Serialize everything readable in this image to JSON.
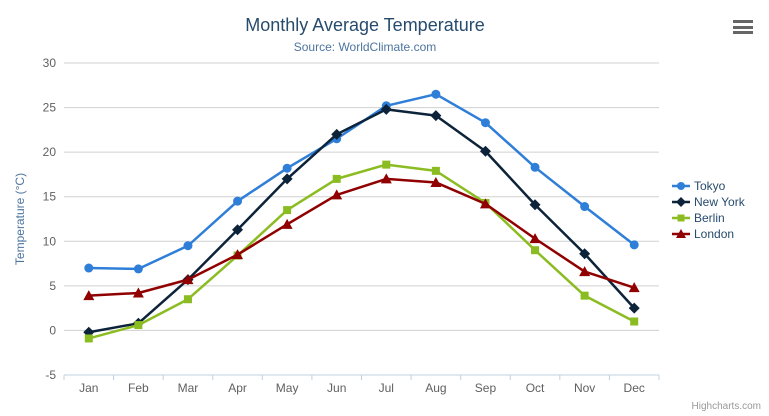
{
  "header": {
    "title": "Monthly Average Temperature",
    "subtitle": "Source: WorldClimate.com"
  },
  "credits": "Highcharts.com",
  "menu": {
    "icon": "hamburger-menu-icon"
  },
  "chart_data": {
    "type": "line",
    "title": "Monthly Average Temperature",
    "subtitle": "Source: WorldClimate.com",
    "categories": [
      "Jan",
      "Feb",
      "Mar",
      "Apr",
      "May",
      "Jun",
      "Jul",
      "Aug",
      "Sep",
      "Oct",
      "Nov",
      "Dec"
    ],
    "xlabel": "",
    "ylabel": "Temperature (°C)",
    "ylim": [
      -5,
      30
    ],
    "ytick_step": 5,
    "grid": true,
    "legend_position": "right",
    "series": [
      {
        "name": "Tokyo",
        "color": "#2f7ed8",
        "marker": "circle",
        "values": [
          7.0,
          6.9,
          9.5,
          14.5,
          18.2,
          21.5,
          25.2,
          26.5,
          23.3,
          18.3,
          13.9,
          9.6
        ]
      },
      {
        "name": "New York",
        "color": "#0d233a",
        "marker": "diamond",
        "values": [
          -0.2,
          0.8,
          5.7,
          11.3,
          17.0,
          22.0,
          24.8,
          24.1,
          20.1,
          14.1,
          8.6,
          2.5
        ]
      },
      {
        "name": "Berlin",
        "color": "#8bbc21",
        "marker": "square",
        "values": [
          -0.9,
          0.6,
          3.5,
          8.4,
          13.5,
          17.0,
          18.6,
          17.9,
          14.3,
          9.0,
          3.9,
          1.0
        ]
      },
      {
        "name": "London",
        "color": "#910000",
        "marker": "triangle",
        "values": [
          3.9,
          4.2,
          5.7,
          8.5,
          11.9,
          15.2,
          17.0,
          16.6,
          14.2,
          10.3,
          6.6,
          4.8
        ]
      }
    ]
  },
  "theme": {
    "title_color": "#274b6d",
    "subtitle_color": "#4d759e",
    "axis_title_color": "#4d759e",
    "axis_label_color": "#606060",
    "grid_color": "#d0d0d0",
    "axis_line_color": "#c0d0e0",
    "legend_text_color": "#274b6d",
    "credits_color": "#999999",
    "menu_icon_color": "#666666"
  }
}
